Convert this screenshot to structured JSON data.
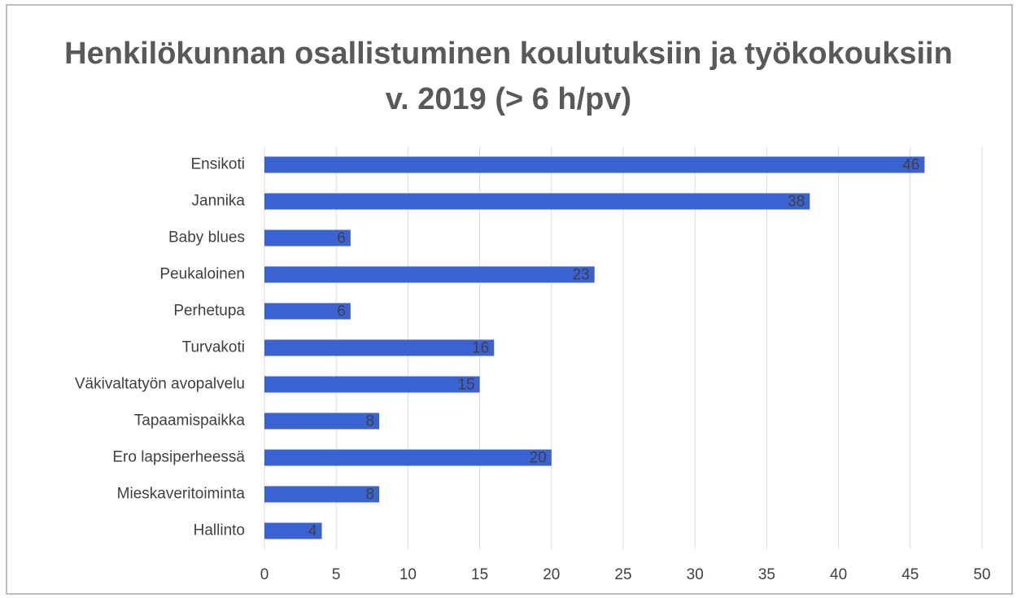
{
  "chart_data": {
    "type": "bar",
    "orientation": "horizontal",
    "title": "Henkilökunnan osallistuminen koulutuksiin ja työkokouksiin v. 2019 (> 6 h/pv)",
    "categories": [
      "Ensikoti",
      "Jannika",
      "Baby blues",
      "Peukaloinen",
      "Perhetupa",
      "Turvakoti",
      "Väkivaltatyön avopalvelu",
      "Tapaamispaikka",
      "Ero lapsiperheessä",
      "Mieskaveritoiminta",
      "Hallinto"
    ],
    "values": [
      46,
      38,
      6,
      23,
      6,
      16,
      15,
      8,
      20,
      8,
      4
    ],
    "color": "#3b62d1",
    "xlim": [
      0,
      50
    ],
    "xticks": [
      0,
      5,
      10,
      15,
      20,
      25,
      30,
      35,
      40,
      45,
      50
    ],
    "grid": true
  }
}
